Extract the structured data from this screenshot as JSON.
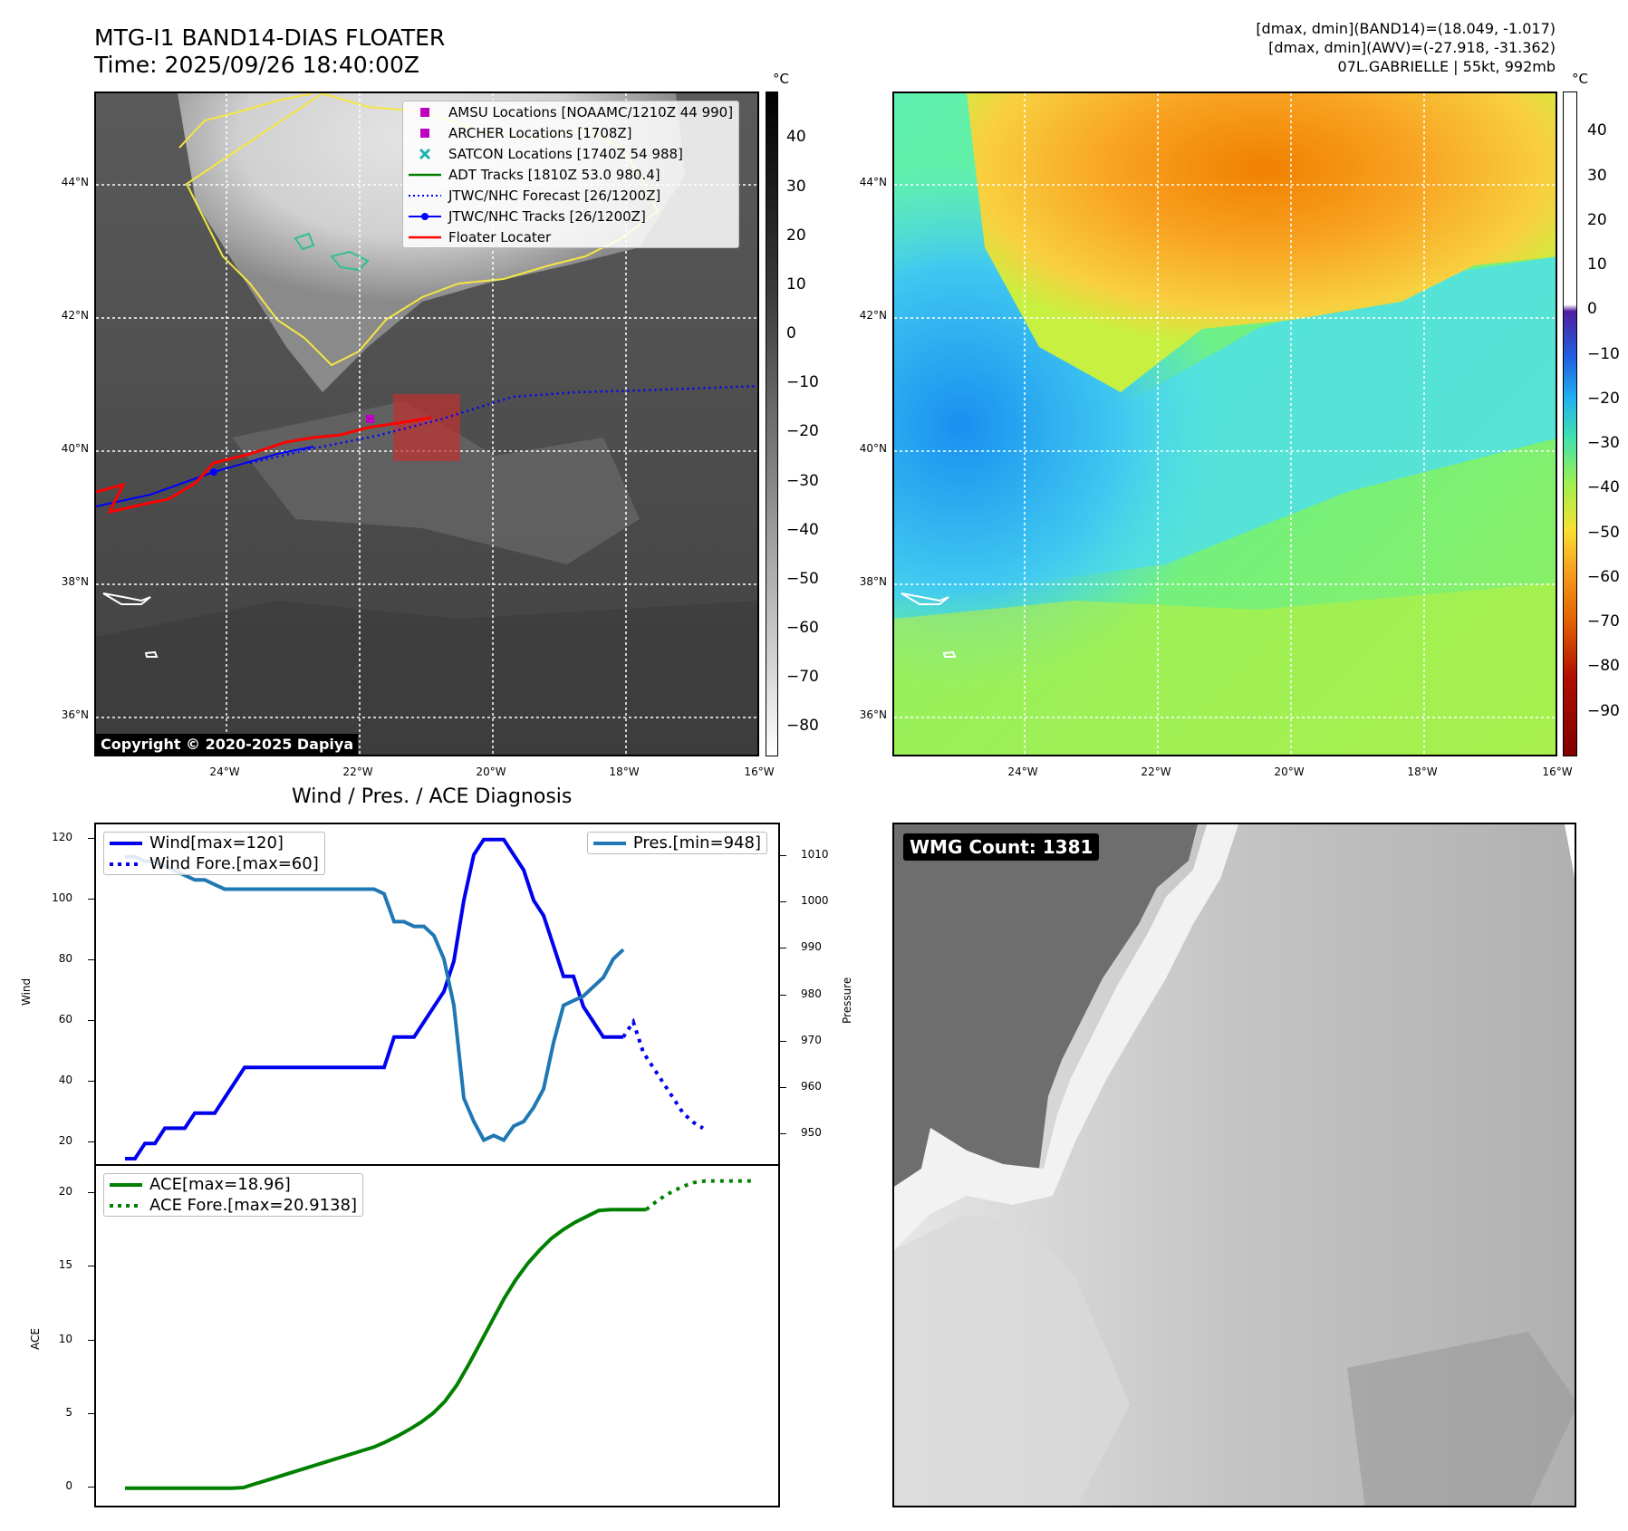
{
  "header": {
    "title_line1": "MTG-I1 BAND14-DIAS FLOATER",
    "title_line2": "Time: 2025/09/26 18:40:00Z",
    "right_line1": "[dmax, dmin](BAND14)=(18.049, -1.017)",
    "right_line2": "[dmax, dmin](AWV)=(-27.918, -31.362)",
    "right_line3": "07L.GABRIELLE | 55kt, 992mb"
  },
  "map_axes": {
    "lat_labels": [
      "44°N",
      "42°N",
      "40°N",
      "38°N",
      "36°N"
    ],
    "lon_labels": [
      "24°W",
      "22°W",
      "20°W",
      "18°W",
      "16°W"
    ]
  },
  "ir_panel": {
    "colorbar_unit": "°C",
    "colorbar_ticks": [
      "40",
      "30",
      "20",
      "10",
      "0",
      "−10",
      "−20",
      "−30",
      "−40",
      "−50",
      "−60",
      "−70",
      "−80"
    ],
    "copyright": "Copyright © 2020-2025 Dapiya",
    "legend": [
      {
        "label": "AMSU Locations [NOAAMC/1210Z 44 990]",
        "symbol": "square",
        "color": "#c000c0"
      },
      {
        "label": "ARCHER Locations [1708Z]",
        "symbol": "square",
        "color": "#c000c0"
      },
      {
        "label": "SATCON Locations [1740Z 54 988]",
        "symbol": "x",
        "color": "#20b0b0"
      },
      {
        "label": "ADT Tracks [1810Z 53.0 980.4]",
        "symbol": "line",
        "color": "#008000"
      },
      {
        "label": "JTWC/NHC Forecast [26/1200Z]",
        "symbol": "dotted",
        "color": "#0000ff"
      },
      {
        "label": "JTWC/NHC Tracks [26/1200Z]",
        "symbol": "line-dot",
        "color": "#0000ff"
      },
      {
        "label": "Floater Locater",
        "symbol": "line",
        "color": "#ff0000"
      }
    ]
  },
  "wv_panel": {
    "colorbar_unit": "°C",
    "colorbar_ticks": [
      "40",
      "30",
      "20",
      "10",
      "0",
      "−10",
      "−20",
      "−30",
      "−40",
      "−50",
      "−60",
      "−70",
      "−80",
      "−90"
    ]
  },
  "wind_panel": {
    "title": "Wind / Pres. / ACE Diagnosis",
    "left_ylabel": "Wind",
    "right_ylabel": "Pressure",
    "left_ticks": [
      "120",
      "100",
      "80",
      "60",
      "40",
      "20"
    ],
    "right_ticks": [
      "1010",
      "1000",
      "990",
      "980",
      "970",
      "960",
      "950"
    ],
    "legend_wind": "Wind[max=120]",
    "legend_wind_fore": "Wind Fore.[max=60]",
    "legend_pres": "Pres.[min=948]"
  },
  "ace_panel": {
    "ylabel": "ACE",
    "ticks": [
      "20",
      "15",
      "10",
      "5",
      "0"
    ],
    "legend_ace": "ACE[max=18.96]",
    "legend_ace_fore": "ACE Fore.[max=20.9138]"
  },
  "wmg_panel": {
    "label": "WMG Count: 1381"
  },
  "chart_data": [
    {
      "type": "line",
      "title": "Wind / Pres. / ACE Diagnosis",
      "ylabel": "Wind",
      "ylim": [
        15,
        122
      ],
      "series": [
        {
          "name": "Wind[max=120]",
          "color": "#0000ee",
          "values": [
            15,
            15,
            20,
            20,
            25,
            25,
            25,
            30,
            30,
            30,
            35,
            40,
            45,
            45,
            45,
            45,
            45,
            45,
            45,
            45,
            45,
            45,
            45,
            45,
            45,
            45,
            45,
            55,
            55,
            55,
            60,
            65,
            70,
            80,
            100,
            115,
            120,
            120,
            120,
            115,
            110,
            100,
            95,
            85,
            75,
            75,
            65,
            60,
            55,
            55,
            55
          ]
        },
        {
          "name": "Wind Fore.[max=60]",
          "color": "#0000ee",
          "start_index": 50,
          "values": [
            55,
            60,
            50,
            45,
            40,
            35,
            30,
            27,
            25
          ]
        }
      ]
    },
    {
      "type": "line",
      "ylabel": "Pressure",
      "ylim": [
        945,
        1015
      ],
      "series": [
        {
          "name": "Pres.[min=948]",
          "color": "#1f77b4",
          "values": [
            1010,
            1010,
            1009,
            1009,
            1008,
            1007,
            1006,
            1005,
            1005,
            1004,
            1003,
            1003,
            1003,
            1003,
            1003,
            1003,
            1003,
            1003,
            1003,
            1003,
            1003,
            1003,
            1003,
            1003,
            1003,
            1003,
            1002,
            996,
            996,
            995,
            995,
            993,
            988,
            978,
            958,
            953,
            949,
            950,
            949,
            952,
            953,
            956,
            960,
            970,
            978,
            979,
            980,
            982,
            984,
            988,
            990
          ]
        }
      ]
    },
    {
      "type": "line",
      "ylabel": "ACE",
      "ylim": [
        -1,
        21.5
      ],
      "series": [
        {
          "name": "ACE[max=18.96]",
          "color": "#008000",
          "values": [
            0,
            0,
            0,
            0,
            0,
            0,
            0,
            0,
            0,
            0,
            0.05,
            0.3,
            0.55,
            0.8,
            1.05,
            1.3,
            1.55,
            1.8,
            2.05,
            2.3,
            2.55,
            2.8,
            3.15,
            3.55,
            4.0,
            4.5,
            5.1,
            5.9,
            7.0,
            8.4,
            9.9,
            11.4,
            12.9,
            14.2,
            15.3,
            16.2,
            17.0,
            17.6,
            18.1,
            18.5,
            18.9,
            18.96,
            18.96,
            18.96,
            18.96
          ]
        },
        {
          "name": "ACE Fore.[max=20.9138]",
          "color": "#008000",
          "start_index": 44,
          "values": [
            18.96,
            19.6,
            20.1,
            20.5,
            20.8,
            20.91,
            20.91,
            20.91,
            20.91,
            20.91
          ]
        }
      ]
    }
  ]
}
